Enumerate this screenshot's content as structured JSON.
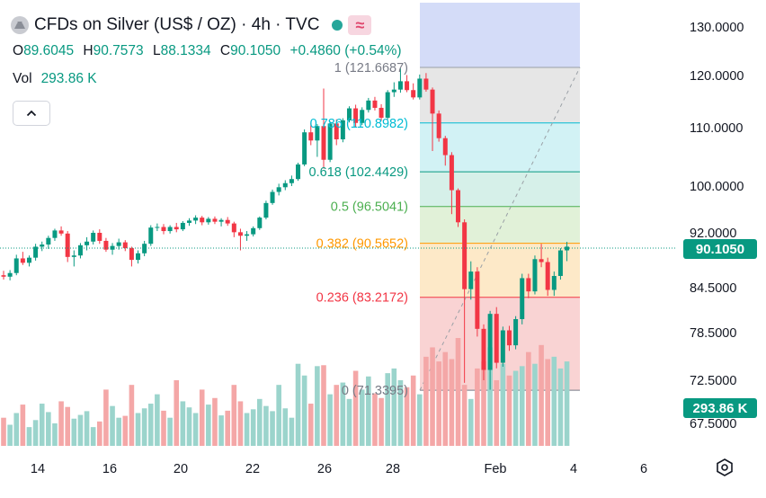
{
  "header": {
    "title": "CFDs on Silver (US$ / OZ) · 4h · TVC",
    "ohlc": {
      "o_label": "O",
      "o": "89.6045",
      "h_label": "H",
      "h": "90.7573",
      "l_label": "L",
      "l": "88.1334",
      "c_label": "C",
      "c": "90.1050",
      "change": "+0.4860 (+0.54%)"
    },
    "vol_label": "Vol",
    "vol_value": "293.86 K"
  },
  "price_tags": {
    "last": "90.1050",
    "volume": "293.86 K"
  },
  "colors": {
    "up": "#089981",
    "down": "#f23645",
    "vol_up": "#9bd4cc",
    "vol_down": "#f4a7a7"
  },
  "chart_data": {
    "type": "candlestick",
    "y_ticks": [
      "130.0000",
      "120.0000",
      "110.0000",
      "100.0000",
      "92.0000",
      "84.5000",
      "78.5000",
      "72.5000",
      "67.5000"
    ],
    "y_tick_values": [
      130,
      120,
      110,
      100,
      92,
      84.5,
      78.5,
      72.5,
      67.5
    ],
    "x_ticks": [
      "14",
      "16",
      "20",
      "22",
      "26",
      "28",
      "Feb",
      "4",
      "6"
    ],
    "fib_levels": [
      {
        "label": "1 (121.6687)",
        "ratio": 1,
        "price": 121.6687,
        "line": "#9aa0a6",
        "fill": "#e6e6e6",
        "text": "#787b86"
      },
      {
        "label": "0.786 (110.8982)",
        "ratio": 0.786,
        "price": 110.8982,
        "line": "#00bcd4",
        "fill": "#d2f2f5",
        "text": "#00bcd4"
      },
      {
        "label": "0.618 (102.4429)",
        "ratio": 0.618,
        "price": 102.4429,
        "line": "#089981",
        "fill": "#d6f0e9",
        "text": "#089981"
      },
      {
        "label": "0.5 (96.5041)",
        "ratio": 0.5,
        "price": 96.5041,
        "line": "#4caf50",
        "fill": "#e1f1d8",
        "text": "#4caf50"
      },
      {
        "label": "0.382 (90.5652)",
        "ratio": 0.382,
        "price": 90.5652,
        "line": "#ff9800",
        "fill": "#fde9c8",
        "text": "#ff9800"
      },
      {
        "label": "0.236 (83.2172)",
        "ratio": 0.236,
        "price": 83.2172,
        "line": "#f23645",
        "fill": "#f9d3d3",
        "text": "#f23645"
      },
      {
        "label": "0 (71.3395)",
        "ratio": 0,
        "price": 71.3395,
        "line": "#787b86",
        "fill": "#f9d3d3",
        "text": "#787b86"
      }
    ],
    "candles": [
      [
        86.2,
        86.8,
        85.6,
        86.0
      ],
      [
        86.0,
        86.9,
        85.5,
        86.5
      ],
      [
        86.5,
        89.0,
        86.2,
        88.5
      ],
      [
        88.5,
        89.4,
        87.6,
        87.9
      ],
      [
        87.9,
        88.9,
        87.4,
        88.6
      ],
      [
        88.6,
        90.5,
        88.2,
        90.1
      ],
      [
        90.1,
        90.8,
        89.5,
        90.4
      ],
      [
        90.4,
        91.6,
        89.8,
        91.3
      ],
      [
        91.3,
        92.7,
        90.9,
        92.4
      ],
      [
        92.4,
        93.1,
        91.6,
        91.9
      ],
      [
        91.9,
        92.3,
        88.0,
        88.7
      ],
      [
        88.7,
        89.6,
        87.4,
        88.9
      ],
      [
        88.9,
        90.6,
        88.5,
        90.3
      ],
      [
        90.3,
        91.4,
        89.6,
        90.8
      ],
      [
        90.8,
        92.4,
        90.4,
        92.0
      ],
      [
        92.0,
        92.6,
        90.5,
        90.9
      ],
      [
        90.9,
        91.3,
        89.4,
        89.7
      ],
      [
        89.7,
        90.6,
        89.0,
        90.2
      ],
      [
        90.2,
        91.2,
        89.7,
        90.7
      ],
      [
        90.7,
        91.0,
        89.5,
        89.9
      ],
      [
        89.9,
        90.1,
        87.4,
        88.3
      ],
      [
        88.3,
        89.6,
        87.8,
        89.2
      ],
      [
        89.2,
        90.9,
        88.8,
        90.5
      ],
      [
        90.5,
        93.3,
        90.2,
        92.9
      ],
      [
        92.9,
        93.6,
        92.3,
        93.0
      ],
      [
        93.0,
        93.5,
        91.8,
        92.3
      ],
      [
        92.3,
        93.3,
        91.9,
        93.0
      ],
      [
        93.0,
        93.7,
        92.1,
        92.6
      ],
      [
        92.6,
        94.0,
        92.3,
        93.7
      ],
      [
        93.7,
        94.5,
        93.2,
        94.1
      ],
      [
        94.1,
        95.0,
        93.5,
        94.6
      ],
      [
        94.6,
        94.9,
        93.3,
        93.8
      ],
      [
        93.8,
        94.7,
        93.4,
        94.4
      ],
      [
        94.4,
        94.8,
        93.5,
        93.9
      ],
      [
        93.9,
        94.5,
        93.1,
        94.2
      ],
      [
        94.2,
        94.7,
        93.2,
        93.6
      ],
      [
        93.6,
        93.9,
        91.4,
        92.1
      ],
      [
        92.1,
        92.7,
        89.6,
        91.6
      ],
      [
        91.6,
        92.3,
        90.9,
        91.8
      ],
      [
        91.8,
        93.1,
        91.5,
        92.8
      ],
      [
        92.8,
        94.8,
        92.5,
        94.6
      ],
      [
        94.6,
        97.5,
        94.3,
        97.1
      ],
      [
        97.1,
        99.4,
        96.8,
        99.0
      ],
      [
        99.0,
        100.4,
        98.4,
        99.8
      ],
      [
        99.8,
        101.0,
        99.3,
        100.5
      ],
      [
        100.5,
        101.8,
        100.0,
        101.2
      ],
      [
        101.2,
        104.0,
        100.9,
        103.7
      ],
      [
        103.7,
        109.7,
        103.4,
        109.2
      ],
      [
        109.2,
        110.9,
        107.0,
        107.8
      ],
      [
        107.8,
        110.7,
        105.0,
        110.3
      ],
      [
        110.3,
        117.5,
        103.0,
        104.5
      ],
      [
        104.5,
        111.2,
        104.1,
        110.8
      ],
      [
        110.8,
        111.6,
        107.0,
        108.0
      ],
      [
        108.0,
        111.8,
        107.5,
        111.4
      ],
      [
        111.4,
        114.1,
        111.0,
        113.7
      ],
      [
        113.7,
        114.4,
        110.0,
        110.9
      ],
      [
        110.9,
        113.9,
        110.5,
        113.4
      ],
      [
        113.4,
        115.7,
        112.9,
        115.2
      ],
      [
        115.2,
        115.9,
        113.3,
        113.8
      ],
      [
        113.8,
        114.5,
        111.3,
        111.9
      ],
      [
        111.9,
        117.2,
        111.6,
        116.8
      ],
      [
        116.8,
        118.7,
        115.9,
        117.3
      ],
      [
        117.3,
        121.5,
        116.7,
        118.9
      ],
      [
        118.9,
        120.1,
        116.8,
        117.2
      ],
      [
        117.2,
        118.5,
        115.4,
        115.8
      ],
      [
        115.8,
        120.2,
        115.4,
        119.4
      ],
      [
        119.4,
        120.5,
        116.9,
        117.3
      ],
      [
        117.3,
        117.7,
        106.0,
        112.7
      ],
      [
        112.7,
        113.3,
        107.6,
        108.2
      ],
      [
        108.2,
        108.6,
        103.5,
        105.3
      ],
      [
        105.3,
        105.8,
        95.2,
        99.3
      ],
      [
        99.3,
        99.6,
        93.0,
        93.8
      ],
      [
        93.8,
        94.3,
        72.2,
        84.3
      ],
      [
        84.3,
        88.1,
        82.9,
        86.7
      ],
      [
        86.7,
        87.3,
        78.0,
        79.0
      ],
      [
        79.0,
        79.6,
        72.5,
        73.8
      ],
      [
        73.8,
        81.4,
        71.4,
        81.0
      ],
      [
        81.0,
        81.9,
        74.0,
        74.7
      ],
      [
        74.7,
        79.3,
        74.2,
        78.8
      ],
      [
        78.8,
        79.4,
        76.2,
        76.9
      ],
      [
        76.9,
        80.7,
        76.4,
        80.3
      ],
      [
        80.3,
        86.4,
        79.6,
        85.8
      ],
      [
        85.8,
        86.4,
        83.1,
        84.0
      ],
      [
        84.0,
        88.9,
        83.6,
        88.4
      ],
      [
        88.4,
        90.5,
        87.3,
        88.0
      ],
      [
        88.0,
        88.6,
        83.4,
        84.2
      ],
      [
        84.2,
        86.7,
        83.4,
        86.1
      ],
      [
        86.1,
        89.9,
        85.6,
        89.6
      ],
      [
        89.6,
        90.76,
        88.13,
        90.105
      ]
    ],
    "volumes": [
      60,
      45,
      70,
      88,
      40,
      55,
      90,
      72,
      48,
      95,
      83,
      58,
      66,
      74,
      40,
      52,
      120,
      85,
      60,
      64,
      130,
      70,
      80,
      90,
      110,
      75,
      60,
      140,
      95,
      82,
      70,
      120,
      88,
      102,
      65,
      75,
      130,
      95,
      70,
      78,
      100,
      85,
      74,
      130,
      80,
      60,
      175,
      150,
      90,
      170,
      172,
      110,
      130,
      135,
      100,
      160,
      120,
      148,
      112,
      102,
      155,
      165,
      140,
      125,
      150,
      110,
      190,
      210,
      180,
      200,
      185,
      230,
      130,
      100,
      165,
      180,
      210,
      140,
      175,
      150,
      160,
      170,
      200,
      175,
      215,
      185,
      190,
      165,
      180
    ]
  }
}
